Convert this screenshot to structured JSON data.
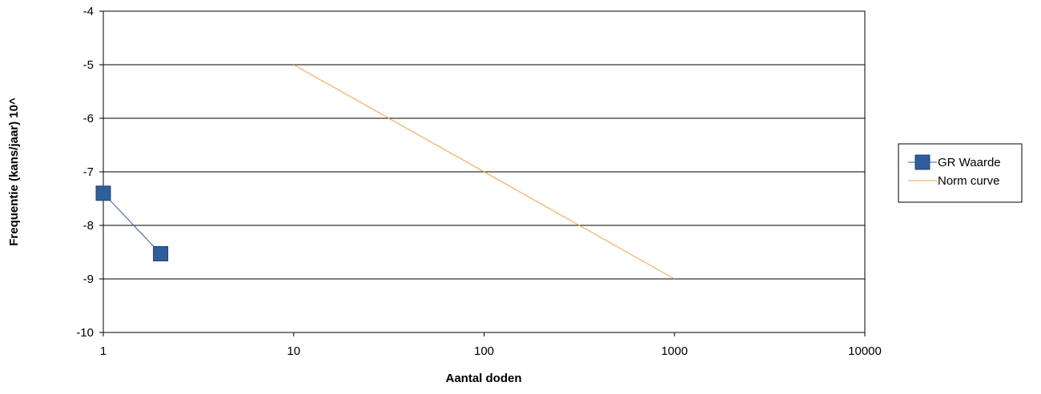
{
  "chart_data": {
    "type": "line",
    "title": "",
    "xlabel": "Aantal doden",
    "ylabel": "Frequentie (kans/jaar) 10^",
    "x_scale": "log",
    "xlim": [
      1,
      10000
    ],
    "ylim": [
      -10,
      -4
    ],
    "x_ticks": [
      1,
      10,
      100,
      1000,
      10000
    ],
    "x_tick_labels": [
      "1",
      "10",
      "100",
      "1000",
      "10000"
    ],
    "y_ticks": [
      -4,
      -5,
      -6,
      -7,
      -8,
      -9,
      -10
    ],
    "y_tick_labels": [
      "-4",
      "-5",
      "-6",
      "-7",
      "-8",
      "-9",
      "-10"
    ],
    "grid": "horizontal",
    "legend_position": "right",
    "series": [
      {
        "name": "GR Waarde",
        "color": "#2e5f9a",
        "marker": "square",
        "points": [
          {
            "x": 1,
            "y": -7.4
          },
          {
            "x": 2,
            "y": -8.53
          }
        ]
      },
      {
        "name": "Norm curve",
        "color": "#f0a040",
        "marker": "none",
        "points": [
          {
            "x": 10,
            "y": -5
          },
          {
            "x": 1000,
            "y": -9
          }
        ]
      }
    ]
  }
}
